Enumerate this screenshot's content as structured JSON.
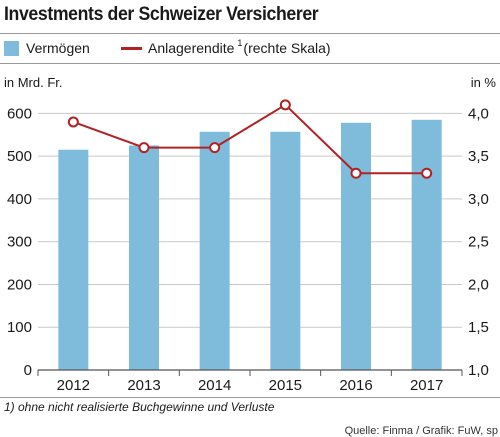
{
  "title": "Investments der Schweizer Versicherer",
  "legend": {
    "bars_label": "Vermögen",
    "line_label_main": "Anlagerendite",
    "line_label_sup": "1",
    "line_label_rest": "(rechte Skala)"
  },
  "left_unit": "in Mrd. Fr.",
  "right_unit": "in %",
  "footnote": "1) ohne nicht realisierte Buchgewinne und Verluste",
  "source": "Quelle: Finma / Grafik: FuW, sp",
  "colors": {
    "bar": "#7fbcdc",
    "line": "#b22222",
    "grid": "#c9c9c9",
    "axis": "#555555"
  },
  "chart_data": {
    "type": "bar",
    "categories": [
      "2012",
      "2013",
      "2014",
      "2015",
      "2016",
      "2017"
    ],
    "series": [
      {
        "name": "Vermögen",
        "type": "bar",
        "axis": "left",
        "values": [
          515,
          525,
          557,
          557,
          578,
          585
        ]
      },
      {
        "name": "Anlagerendite (rechte Skala)",
        "type": "line",
        "axis": "right",
        "values": [
          3.9,
          3.6,
          3.6,
          4.1,
          3.3,
          3.3
        ]
      }
    ],
    "y_left": {
      "lim": [
        0,
        650
      ],
      "ticks": [
        "0",
        "100",
        "200",
        "300",
        "400",
        "500",
        "600"
      ],
      "tick_values": [
        0,
        100,
        200,
        300,
        400,
        500,
        600
      ]
    },
    "y_right": {
      "lim": [
        1.0,
        4.25
      ],
      "ticks": [
        "1,0",
        "1,5",
        "2,0",
        "2,5",
        "3,0",
        "3,5",
        "4,0"
      ],
      "tick_values": [
        1.0,
        1.5,
        2.0,
        2.5,
        3.0,
        3.5,
        4.0
      ]
    },
    "grid": true,
    "legend_position": "top-left"
  }
}
